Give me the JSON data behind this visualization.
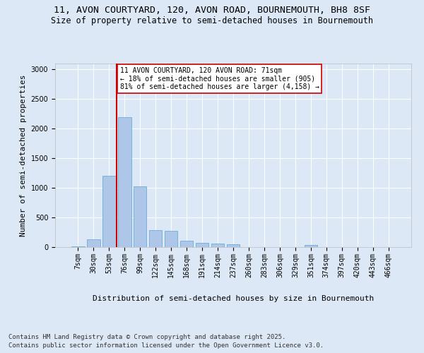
{
  "title_line1": "11, AVON COURTYARD, 120, AVON ROAD, BOURNEMOUTH, BH8 8SF",
  "title_line2": "Size of property relative to semi-detached houses in Bournemouth",
  "xlabel": "Distribution of semi-detached houses by size in Bournemouth",
  "ylabel": "Number of semi-detached properties",
  "categories": [
    "7sqm",
    "30sqm",
    "53sqm",
    "76sqm",
    "99sqm",
    "122sqm",
    "145sqm",
    "168sqm",
    "191sqm",
    "214sqm",
    "237sqm",
    "260sqm",
    "283sqm",
    "306sqm",
    "329sqm",
    "351sqm",
    "374sqm",
    "397sqm",
    "420sqm",
    "443sqm",
    "466sqm"
  ],
  "values": [
    10,
    130,
    1210,
    2190,
    1030,
    285,
    280,
    110,
    70,
    65,
    50,
    0,
    0,
    0,
    0,
    30,
    0,
    0,
    0,
    0,
    0
  ],
  "bar_color": "#aec6e8",
  "bar_edge_color": "#6aaed6",
  "vline_x_index": 3,
  "vline_color": "#cc0000",
  "annotation_text": "11 AVON COURTYARD, 120 AVON ROAD: 71sqm\n← 18% of semi-detached houses are smaller (905)\n81% of semi-detached houses are larger (4,158) →",
  "annotation_box_color": "#ffffff",
  "annotation_box_edge": "#cc0000",
  "ylim": [
    0,
    3100
  ],
  "yticks": [
    0,
    500,
    1000,
    1500,
    2000,
    2500,
    3000
  ],
  "background_color": "#dce8f5",
  "plot_bg_color": "#dce8f5",
  "footer_line1": "Contains HM Land Registry data © Crown copyright and database right 2025.",
  "footer_line2": "Contains public sector information licensed under the Open Government Licence v3.0.",
  "title_fontsize": 9.5,
  "subtitle_fontsize": 8.5,
  "axis_label_fontsize": 8,
  "tick_fontsize": 7,
  "annotation_fontsize": 7,
  "footer_fontsize": 6.5
}
